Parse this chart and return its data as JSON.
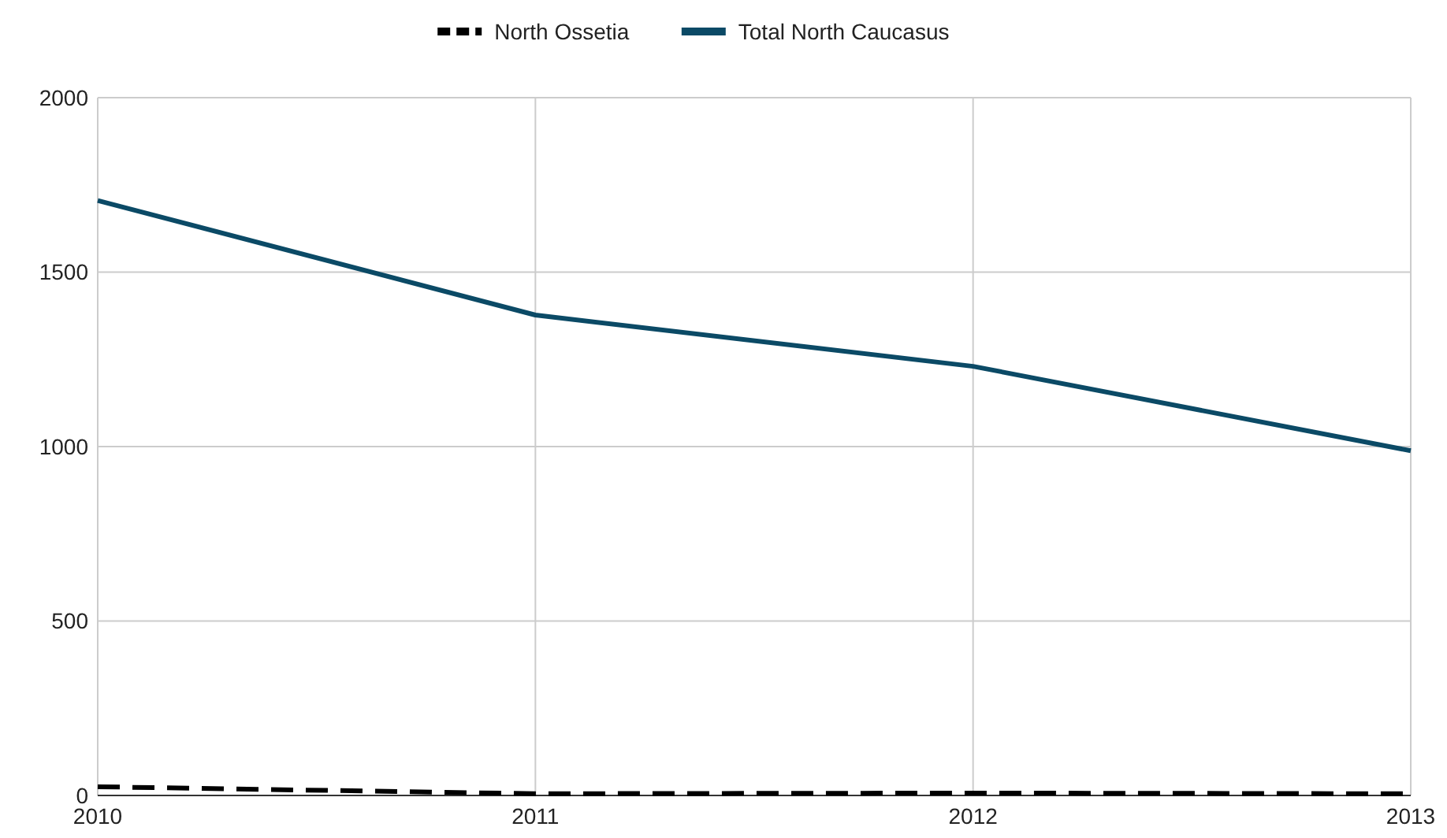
{
  "chart_data": {
    "type": "line",
    "x": [
      2010,
      2011,
      2012,
      2013
    ],
    "xlim": [
      2010,
      2013
    ],
    "xticks": [
      2010,
      2011,
      2012,
      2013
    ],
    "ylim": [
      0,
      2000
    ],
    "yticks": [
      0,
      500,
      1000,
      1500,
      2000
    ],
    "grid": true,
    "legend": "top",
    "series": [
      {
        "name": "North Ossetia",
        "color": "#000000",
        "line_style": "dashed",
        "values": [
          25,
          5,
          7,
          5
        ]
      },
      {
        "name": "Total North Caucasus",
        "color": "#0b4a66",
        "line_style": "solid",
        "values": [
          1705,
          1377,
          1230,
          988
        ]
      }
    ]
  }
}
